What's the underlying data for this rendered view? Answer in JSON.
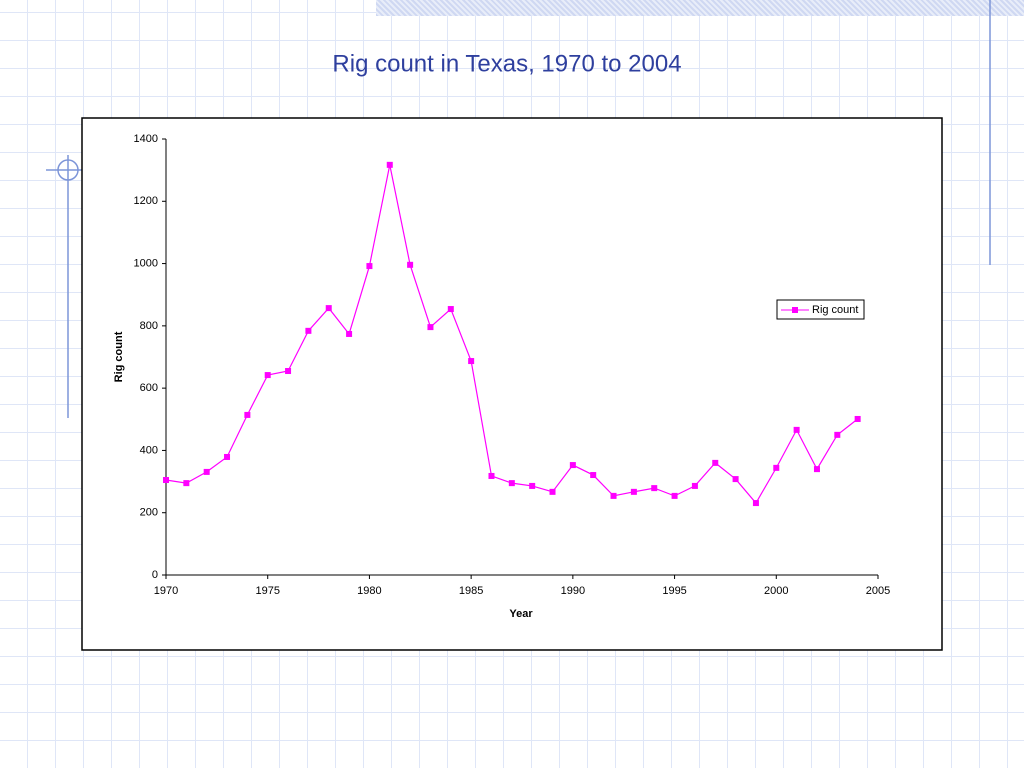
{
  "chart_data": {
    "type": "line",
    "title": "Rig count in Texas, 1970 to 2004",
    "x_label": "Year",
    "y_label": "Rig count",
    "x": [
      1970,
      1971,
      1972,
      1973,
      1974,
      1975,
      1976,
      1977,
      1978,
      1979,
      1980,
      1981,
      1982,
      1983,
      1984,
      1985,
      1986,
      1987,
      1988,
      1989,
      1990,
      1991,
      1992,
      1993,
      1994,
      1995,
      1996,
      1997,
      1998,
      1999,
      2000,
      2001,
      2002,
      2003,
      2004
    ],
    "series": [
      {
        "name": "Rig count",
        "color": "#ff00ff",
        "values": [
          305,
          295,
          331,
          379,
          514,
          642,
          655,
          784,
          857,
          774,
          992,
          1317,
          996,
          796,
          854,
          687,
          318,
          295,
          286,
          267,
          353,
          321,
          254,
          267,
          279,
          254,
          286,
          360,
          308,
          231,
          344,
          466,
          340,
          450,
          501
        ]
      }
    ],
    "xlim": [
      1970,
      2005
    ],
    "xticks": [
      1970,
      1975,
      1980,
      1985,
      1990,
      1995,
      2000,
      2005
    ],
    "ylim": [
      0,
      1400
    ],
    "yticks": [
      0,
      200,
      400,
      600,
      800,
      1000,
      1200,
      1400
    ],
    "grid": false,
    "legend": "right"
  }
}
